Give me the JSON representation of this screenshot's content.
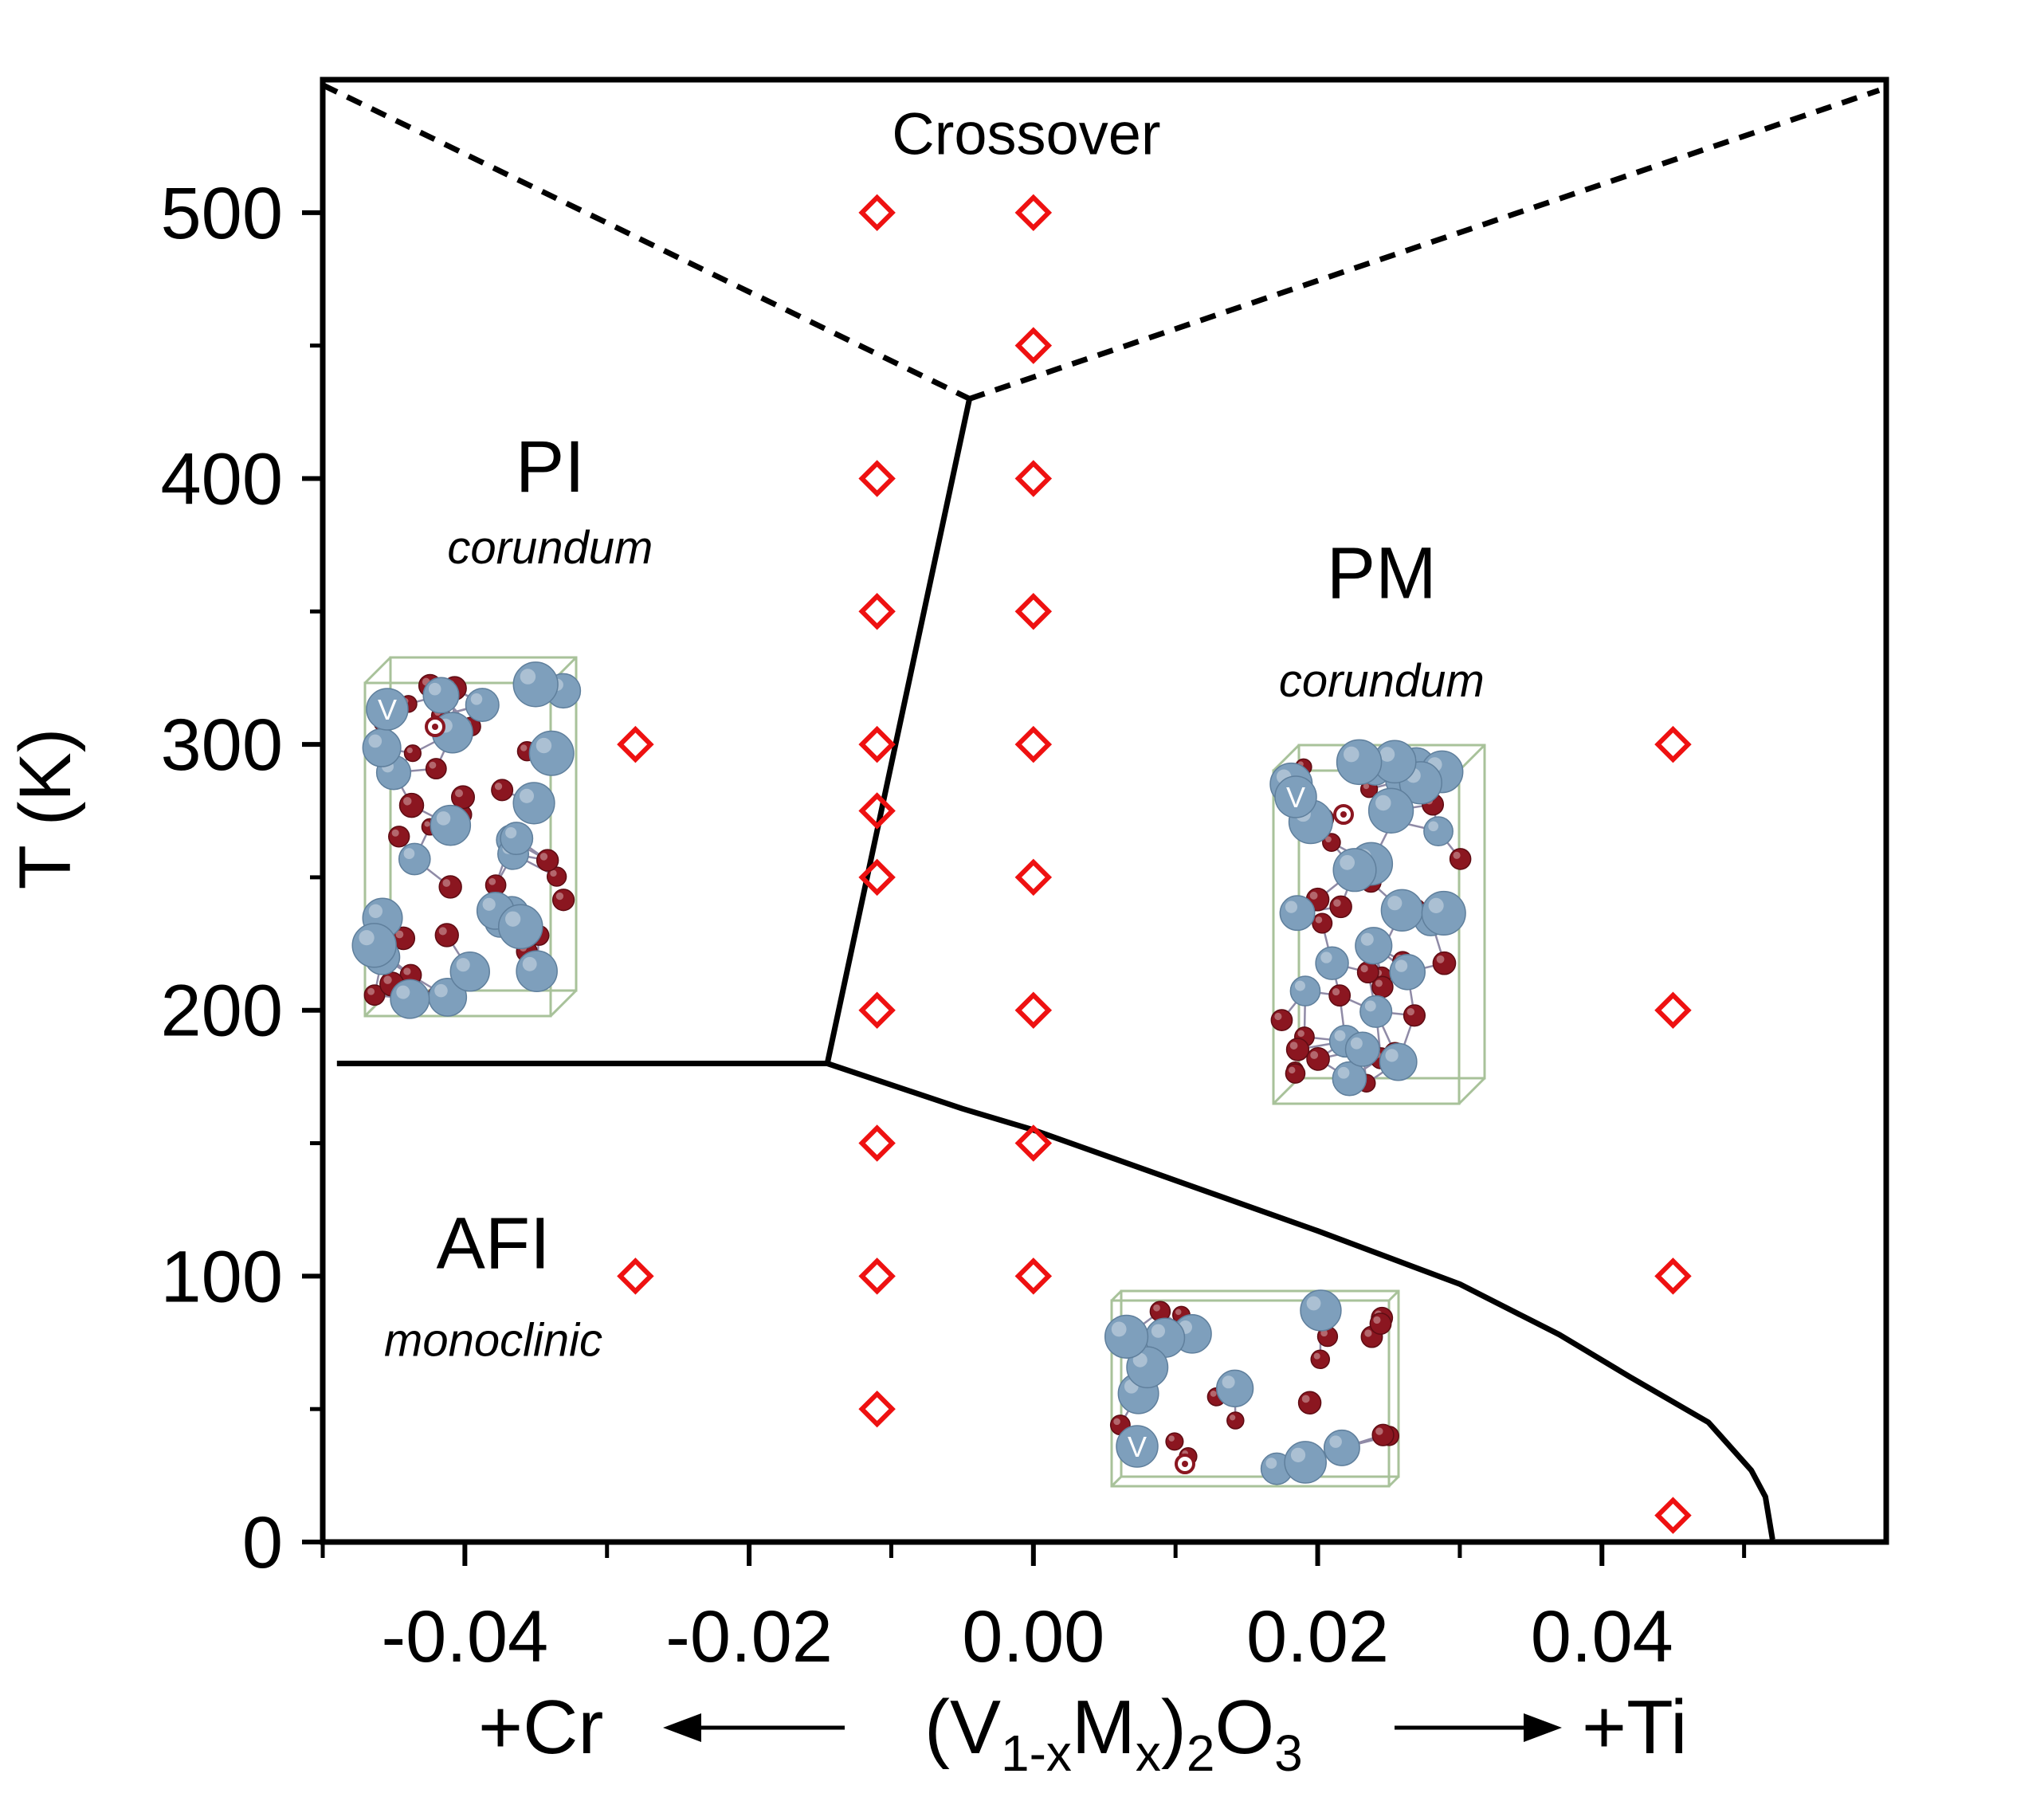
{
  "chart_data": {
    "type": "scatter",
    "title": "",
    "xlabel": {
      "left_arrow_label": "+Cr",
      "formula_parts": [
        "(V",
        "1-x",
        "M",
        "x",
        ")",
        "2",
        "O",
        "3"
      ],
      "right_arrow_label": "+Ti"
    },
    "ylabel": "T (K)",
    "xlim": [
      -0.05,
      0.06
    ],
    "ylim": [
      0,
      550
    ],
    "x_ticks": [
      {
        "value": -0.04,
        "label": "-0.04"
      },
      {
        "value": -0.02,
        "label": "-0.02"
      },
      {
        "value": 0.0,
        "label": "0.00"
      },
      {
        "value": 0.02,
        "label": "0.02"
      },
      {
        "value": 0.04,
        "label": "0.04"
      }
    ],
    "x_minor_ticks": [
      -0.05,
      -0.03,
      -0.01,
      0.01,
      0.03,
      0.05
    ],
    "y_ticks": [
      {
        "value": 0,
        "label": "0"
      },
      {
        "value": 100,
        "label": "100"
      },
      {
        "value": 200,
        "label": "200"
      },
      {
        "value": 300,
        "label": "300"
      },
      {
        "value": 400,
        "label": "400"
      },
      {
        "value": 500,
        "label": "500"
      }
    ],
    "series": [
      {
        "name": "measurements",
        "marker": "open-diamond",
        "color": "#ee1111",
        "points": [
          {
            "x": -0.028,
            "T": 300
          },
          {
            "x": -0.028,
            "T": 100
          },
          {
            "x": -0.011,
            "T": 500
          },
          {
            "x": -0.011,
            "T": 400
          },
          {
            "x": -0.011,
            "T": 350
          },
          {
            "x": -0.011,
            "T": 300
          },
          {
            "x": -0.011,
            "T": 275
          },
          {
            "x": -0.011,
            "T": 250
          },
          {
            "x": -0.011,
            "T": 200
          },
          {
            "x": -0.011,
            "T": 150
          },
          {
            "x": -0.011,
            "T": 100
          },
          {
            "x": -0.011,
            "T": 50
          },
          {
            "x": 0.0,
            "T": 500
          },
          {
            "x": 0.0,
            "T": 450
          },
          {
            "x": 0.0,
            "T": 400
          },
          {
            "x": 0.0,
            "T": 350
          },
          {
            "x": 0.0,
            "T": 300
          },
          {
            "x": 0.0,
            "T": 250
          },
          {
            "x": 0.0,
            "T": 200
          },
          {
            "x": 0.0,
            "T": 150
          },
          {
            "x": 0.0,
            "T": 100
          },
          {
            "x": 0.045,
            "T": 300
          },
          {
            "x": 0.045,
            "T": 200
          },
          {
            "x": 0.045,
            "T": 100
          },
          {
            "x": 0.045,
            "T": 10
          }
        ]
      }
    ],
    "phase_boundaries": [
      {
        "name": "AFI-PI boundary",
        "style": "solid",
        "points": [
          [
            -0.049,
            180
          ],
          [
            -0.0145,
            180
          ]
        ]
      },
      {
        "name": "PI-PM boundary",
        "style": "solid",
        "points": [
          [
            -0.0145,
            180
          ],
          [
            -0.0045,
            430
          ]
        ]
      },
      {
        "name": "AFI-PM boundary",
        "style": "solid",
        "points": [
          [
            -0.0145,
            180
          ],
          [
            -0.005,
            163
          ],
          [
            0.0,
            155
          ],
          [
            0.01,
            136
          ],
          [
            0.02,
            117
          ],
          [
            0.03,
            97
          ],
          [
            0.037,
            78
          ],
          [
            0.042,
            62
          ],
          [
            0.0475,
            45
          ],
          [
            0.0505,
            27
          ],
          [
            0.0515,
            17
          ],
          [
            0.052,
            1
          ]
        ]
      },
      {
        "name": "crossover left",
        "style": "dashed",
        "points": [
          [
            -0.05,
            548
          ],
          [
            -0.0045,
            430
          ]
        ]
      },
      {
        "name": "crossover right",
        "style": "dashed",
        "points": [
          [
            -0.0045,
            430
          ],
          [
            0.0595,
            546
          ]
        ]
      }
    ],
    "annotations": [
      {
        "text": "Crossover",
        "x": -0.0005,
        "T": 522,
        "kind": "crossover"
      },
      {
        "text": "PI",
        "x": -0.034,
        "T": 395,
        "kind": "region"
      },
      {
        "text": "corundum",
        "x": -0.034,
        "T": 368,
        "kind": "sub"
      },
      {
        "text": "PM",
        "x": 0.0245,
        "T": 355,
        "kind": "region"
      },
      {
        "text": "corundum",
        "x": 0.0245,
        "T": 318,
        "kind": "sub"
      },
      {
        "text": "AFI",
        "x": -0.038,
        "T": 103,
        "kind": "region"
      },
      {
        "text": "monoclinic",
        "x": -0.038,
        "T": 70,
        "kind": "sub"
      }
    ],
    "crystal_insets": [
      {
        "name": "corundum-structure-pi",
        "atom_label": "V"
      },
      {
        "name": "corundum-structure-pm",
        "atom_label": "V"
      },
      {
        "name": "monoclinic-structure-afi",
        "atom_label": "V"
      }
    ],
    "grid": false,
    "legend": "none"
  },
  "colors": {
    "marker": "#ee1111",
    "line": "#000000",
    "vanadium": "#7e9fbc",
    "oxygen": "#8b1620",
    "cell_edge": "#a8c29a",
    "bond": "#8f8aa6"
  }
}
